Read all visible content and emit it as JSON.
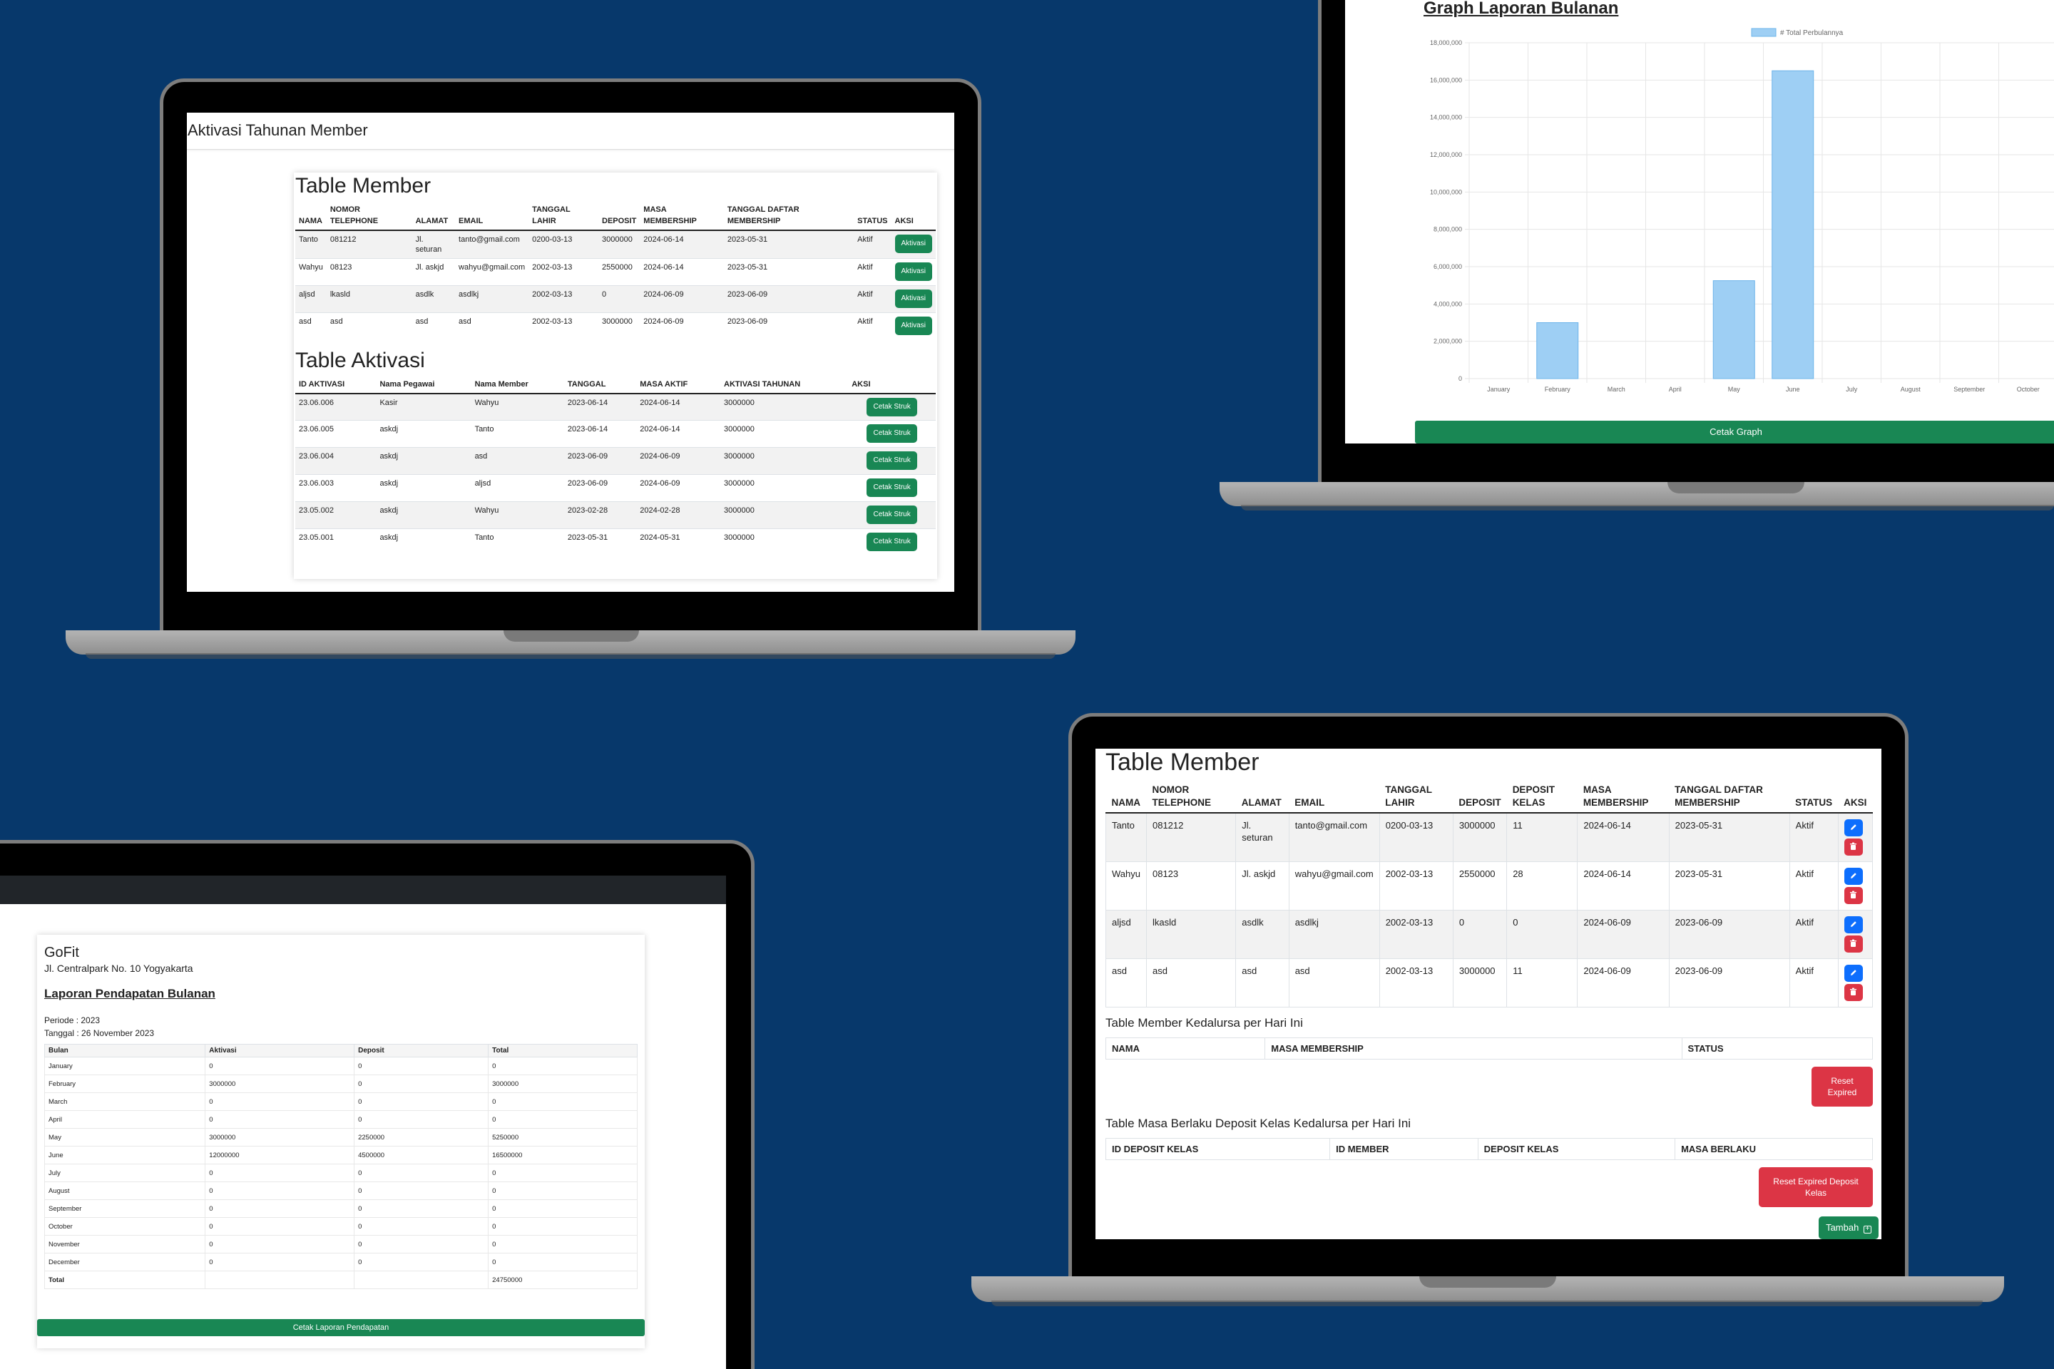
{
  "laptop1": {
    "page_title": "Aktivasi Tahunan Member",
    "member_table": {
      "title": "Table Member",
      "headers": [
        "NAMA",
        "NOMOR TELEPHONE",
        "ALAMAT",
        "EMAIL",
        "TANGGAL LAHIR",
        "DEPOSIT",
        "MASA MEMBERSHIP",
        "TANGGAL DAFTAR MEMBERSHIP",
        "STATUS",
        "AKSI"
      ],
      "rows": [
        [
          "Tanto",
          "081212",
          "Jl. seturan",
          "tanto@gmail.com",
          "0200-03-13",
          "3000000",
          "2024-06-14",
          "2023-05-31",
          "Aktif"
        ],
        [
          "Wahyu",
          "08123",
          "Jl. askjd",
          "wahyu@gmail.com",
          "2002-03-13",
          "2550000",
          "2024-06-14",
          "2023-05-31",
          "Aktif"
        ],
        [
          "aljsd",
          "lkasld",
          "asdlk",
          "asdlkj",
          "2002-03-13",
          "0",
          "2024-06-09",
          "2023-06-09",
          "Aktif"
        ],
        [
          "asd",
          "asd",
          "asd",
          "asd",
          "2002-03-13",
          "3000000",
          "2024-06-09",
          "2023-06-09",
          "Aktif"
        ]
      ],
      "action_label": "Aktivasi"
    },
    "aktivasi_table": {
      "title": "Table Aktivasi",
      "headers": [
        "ID AKTIVASI",
        "Nama Pegawai",
        "Nama Member",
        "TANGGAL",
        "MASA AKTIF",
        "AKTIVASI TAHUNAN",
        "AKSI"
      ],
      "rows": [
        [
          "23.06.006",
          "Kasir",
          "Wahyu",
          "2023-06-14",
          "2024-06-14",
          "3000000"
        ],
        [
          "23.06.005",
          "askdj",
          "Tanto",
          "2023-06-14",
          "2024-06-14",
          "3000000"
        ],
        [
          "23.06.004",
          "askdj",
          "asd",
          "2023-06-09",
          "2024-06-09",
          "3000000"
        ],
        [
          "23.06.003",
          "askdj",
          "aljsd",
          "2023-06-09",
          "2024-06-09",
          "3000000"
        ],
        [
          "23.05.002",
          "askdj",
          "Wahyu",
          "2023-02-28",
          "2024-02-28",
          "3000000"
        ],
        [
          "23.05.001",
          "askdj",
          "Tanto",
          "2023-05-31",
          "2024-05-31",
          "3000000"
        ]
      ],
      "action_label": "Cetak Struk"
    }
  },
  "laptop2": {
    "title": "Graph Laporan Bulanan",
    "button_label": "Cetak Graph"
  },
  "chart_data": {
    "type": "bar",
    "title": "Graph Laporan Bulanan",
    "legend": "# Total Perbulannya",
    "legend_position": "top",
    "categories": [
      "January",
      "February",
      "March",
      "April",
      "May",
      "June",
      "July",
      "August",
      "September",
      "October"
    ],
    "values": [
      0,
      3000000,
      0,
      0,
      5250000,
      16500000,
      0,
      0,
      0,
      0
    ],
    "ylim": [
      0,
      18000000
    ],
    "yticks": [
      "0",
      "2,000,000",
      "4,000,000",
      "6,000,000",
      "8,000,000",
      "10,000,000",
      "12,000,000",
      "14,000,000",
      "16,000,000",
      "18,000,000"
    ],
    "grid": true,
    "bar_color": "#9ecff4",
    "bar_border": "#6cb4ea"
  },
  "laptop3": {
    "company": "GoFit",
    "address": "Jl. Centralpark No. 10 Yogyakarta",
    "report_title": "Laporan Pendapatan Bulanan",
    "periode": "Periode : 2023",
    "tanggal": "Tanggal : 26 November 2023",
    "headers": [
      "Bulan",
      "Aktivasi",
      "Deposit",
      "Total"
    ],
    "rows": [
      [
        "January",
        "0",
        "0",
        "0"
      ],
      [
        "February",
        "3000000",
        "0",
        "3000000"
      ],
      [
        "March",
        "0",
        "0",
        "0"
      ],
      [
        "April",
        "0",
        "0",
        "0"
      ],
      [
        "May",
        "3000000",
        "2250000",
        "5250000"
      ],
      [
        "June",
        "12000000",
        "4500000",
        "16500000"
      ],
      [
        "July",
        "0",
        "0",
        "0"
      ],
      [
        "August",
        "0",
        "0",
        "0"
      ],
      [
        "September",
        "0",
        "0",
        "0"
      ],
      [
        "October",
        "0",
        "0",
        "0"
      ],
      [
        "November",
        "0",
        "0",
        "0"
      ],
      [
        "December",
        "0",
        "0",
        "0"
      ],
      [
        "Total",
        "",
        "",
        "24750000"
      ]
    ],
    "button_label": "Cetak Laporan Pendapatan"
  },
  "laptop4": {
    "member_table": {
      "title": "Table Member",
      "headers": [
        "NAMA",
        "NOMOR TELEPHONE",
        "ALAMAT",
        "EMAIL",
        "TANGGAL LAHIR",
        "DEPOSIT",
        "DEPOSIT KELAS",
        "MASA MEMBERSHIP",
        "TANGGAL DAFTAR MEMBERSHIP",
        "STATUS",
        "AKSI"
      ],
      "rows": [
        [
          "Tanto",
          "081212",
          "Jl. seturan",
          "tanto@gmail.com",
          "0200-03-13",
          "3000000",
          "11",
          "2024-06-14",
          "2023-05-31",
          "Aktif"
        ],
        [
          "Wahyu",
          "08123",
          "Jl. askjd",
          "wahyu@gmail.com",
          "2002-03-13",
          "2550000",
          "28",
          "2024-06-14",
          "2023-05-31",
          "Aktif"
        ],
        [
          "aljsd",
          "lkasld",
          "asdlk",
          "asdlkj",
          "2002-03-13",
          "0",
          "0",
          "2024-06-09",
          "2023-06-09",
          "Aktif"
        ],
        [
          "asd",
          "asd",
          "asd",
          "asd",
          "2002-03-13",
          "3000000",
          "11",
          "2024-06-09",
          "2023-06-09",
          "Aktif"
        ]
      ]
    },
    "expired_table": {
      "title": "Table Member Kedalursa per Hari Ini",
      "headers": [
        "NAMA",
        "MASA MEMBERSHIP",
        "STATUS"
      ],
      "button_label": "Reset Expired"
    },
    "deposit_table": {
      "title": "Table Masa Berlaku Deposit Kelas Kedalursa per Hari Ini",
      "headers": [
        "ID DEPOSIT KELAS",
        "ID MEMBER",
        "DEPOSIT KELAS",
        "MASA BERLAKU"
      ],
      "button_label": "Reset Expired Deposit Kelas"
    },
    "add_button_label": "Tambah"
  }
}
